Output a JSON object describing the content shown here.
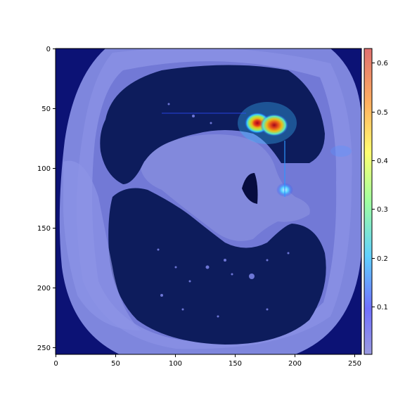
{
  "figure": {
    "x_ticks": [
      "0",
      "50",
      "100",
      "150",
      "200",
      "250"
    ],
    "y_ticks": [
      "0",
      "50",
      "100",
      "150",
      "200",
      "250"
    ],
    "colorbar_ticks": [
      "0.1",
      "0.2",
      "0.3",
      "0.4",
      "0.5",
      "0.6"
    ],
    "colorbar_range": [
      0.0,
      0.63
    ],
    "colormap": "jet",
    "image_extent": [
      0,
      256,
      256,
      0
    ]
  },
  "colors": {
    "background": "#ffffff",
    "axis_frame": "#000000",
    "lung_dark": "#0c1a4a",
    "tissue": "#7f86d6",
    "image_border": "#0b0f66"
  }
}
